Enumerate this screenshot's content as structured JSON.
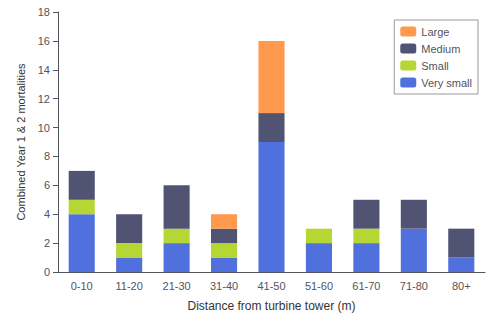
{
  "chart_data": {
    "type": "bar",
    "stacked": true,
    "categories": [
      "0-10",
      "11-20",
      "21-30",
      "31-40",
      "41-50",
      "51-60",
      "61-70",
      "71-80",
      "80+"
    ],
    "series": [
      {
        "name": "Very small",
        "values": [
          4,
          1,
          2,
          1,
          9,
          2,
          2,
          3,
          1
        ]
      },
      {
        "name": "Small",
        "values": [
          1,
          1,
          1,
          1,
          0,
          1,
          1,
          0,
          0
        ]
      },
      {
        "name": "Medium",
        "values": [
          2,
          2,
          3,
          1,
          2,
          0,
          2,
          2,
          2
        ]
      },
      {
        "name": "Large",
        "values": [
          0,
          0,
          0,
          1,
          5,
          0,
          0,
          0,
          0
        ]
      }
    ],
    "xlabel": "Distance from turbine tower (m)",
    "ylabel": "Combined Year 1 & 2 mortalities",
    "ylim": [
      0,
      18
    ],
    "yticks": [
      0,
      2,
      4,
      6,
      8,
      10,
      12,
      14,
      16,
      18
    ],
    "grid": false,
    "legend": "upper right"
  }
}
